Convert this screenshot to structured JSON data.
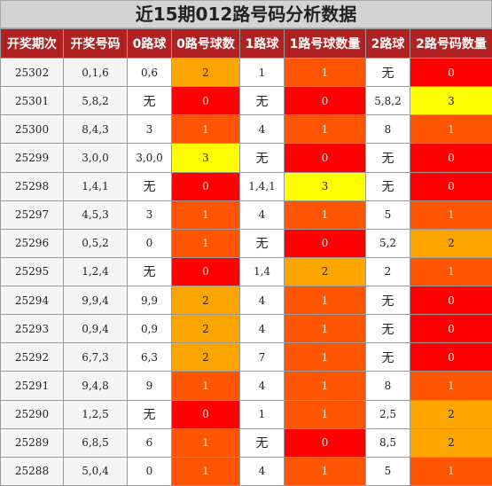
{
  "title": "近15期012路号码分析数据",
  "headers": [
    "开奖期次",
    "开奖号码",
    "0路球",
    "0路号球数",
    "1路球",
    "1路号球数量",
    "2路球",
    "2路号码数量"
  ],
  "rows": [
    {
      "issue": "25302",
      "number": "0,1,6",
      "r0": "0,6",
      "c0": "2",
      "r1": "1",
      "c1": "1",
      "r2": "无",
      "c2": "0"
    },
    {
      "issue": "25301",
      "number": "5,8,2",
      "r0": "无",
      "c0": "0",
      "r1": "无",
      "c1": "0",
      "r2": "5,8,2",
      "c2": "3"
    },
    {
      "issue": "25300",
      "number": "8,4,3",
      "r0": "3",
      "c0": "1",
      "r1": "4",
      "c1": "1",
      "r2": "8",
      "c2": "1"
    },
    {
      "issue": "25299",
      "number": "3,0,0",
      "r0": "3,0,0",
      "c0": "3",
      "r1": "无",
      "c1": "0",
      "r2": "无",
      "c2": "0"
    },
    {
      "issue": "25298",
      "number": "1,4,1",
      "r0": "无",
      "c0": "0",
      "r1": "1,4,1",
      "c1": "3",
      "r2": "无",
      "c2": "0"
    },
    {
      "issue": "25297",
      "number": "4,5,3",
      "r0": "3",
      "c0": "1",
      "r1": "4",
      "c1": "1",
      "r2": "5",
      "c2": "1"
    },
    {
      "issue": "25296",
      "number": "0,5,2",
      "r0": "0",
      "c0": "1",
      "r1": "无",
      "c1": "0",
      "r2": "5,2",
      "c2": "2"
    },
    {
      "issue": "25295",
      "number": "1,2,4",
      "r0": "无",
      "c0": "0",
      "r1": "1,4",
      "c1": "2",
      "r2": "2",
      "c2": "1"
    },
    {
      "issue": "25294",
      "number": "9,9,4",
      "r0": "9,9",
      "c0": "2",
      "r1": "4",
      "c1": "1",
      "r2": "无",
      "c2": "0"
    },
    {
      "issue": "25293",
      "number": "0,9,4",
      "r0": "0,9",
      "c0": "2",
      "r1": "4",
      "c1": "1",
      "r2": "无",
      "c2": "0"
    },
    {
      "issue": "25292",
      "number": "6,7,3",
      "r0": "6,3",
      "c0": "2",
      "r1": "7",
      "c1": "1",
      "r2": "无",
      "c2": "0"
    },
    {
      "issue": "25291",
      "number": "9,4,8",
      "r0": "9",
      "c0": "1",
      "r1": "4",
      "c1": "1",
      "r2": "8",
      "c2": "1"
    },
    {
      "issue": "25290",
      "number": "1,2,5",
      "r0": "无",
      "c0": "0",
      "r1": "1",
      "c1": "1",
      "r2": "2,5",
      "c2": "2"
    },
    {
      "issue": "25289",
      "number": "6,8,5",
      "r0": "6",
      "c0": "1",
      "r1": "无",
      "c1": "0",
      "r2": "8,5",
      "c2": "2"
    },
    {
      "issue": "25288",
      "number": "5,0,4",
      "r0": "0",
      "c0": "1",
      "r1": "4",
      "c1": "1",
      "r2": "5",
      "c2": "1"
    }
  ]
}
